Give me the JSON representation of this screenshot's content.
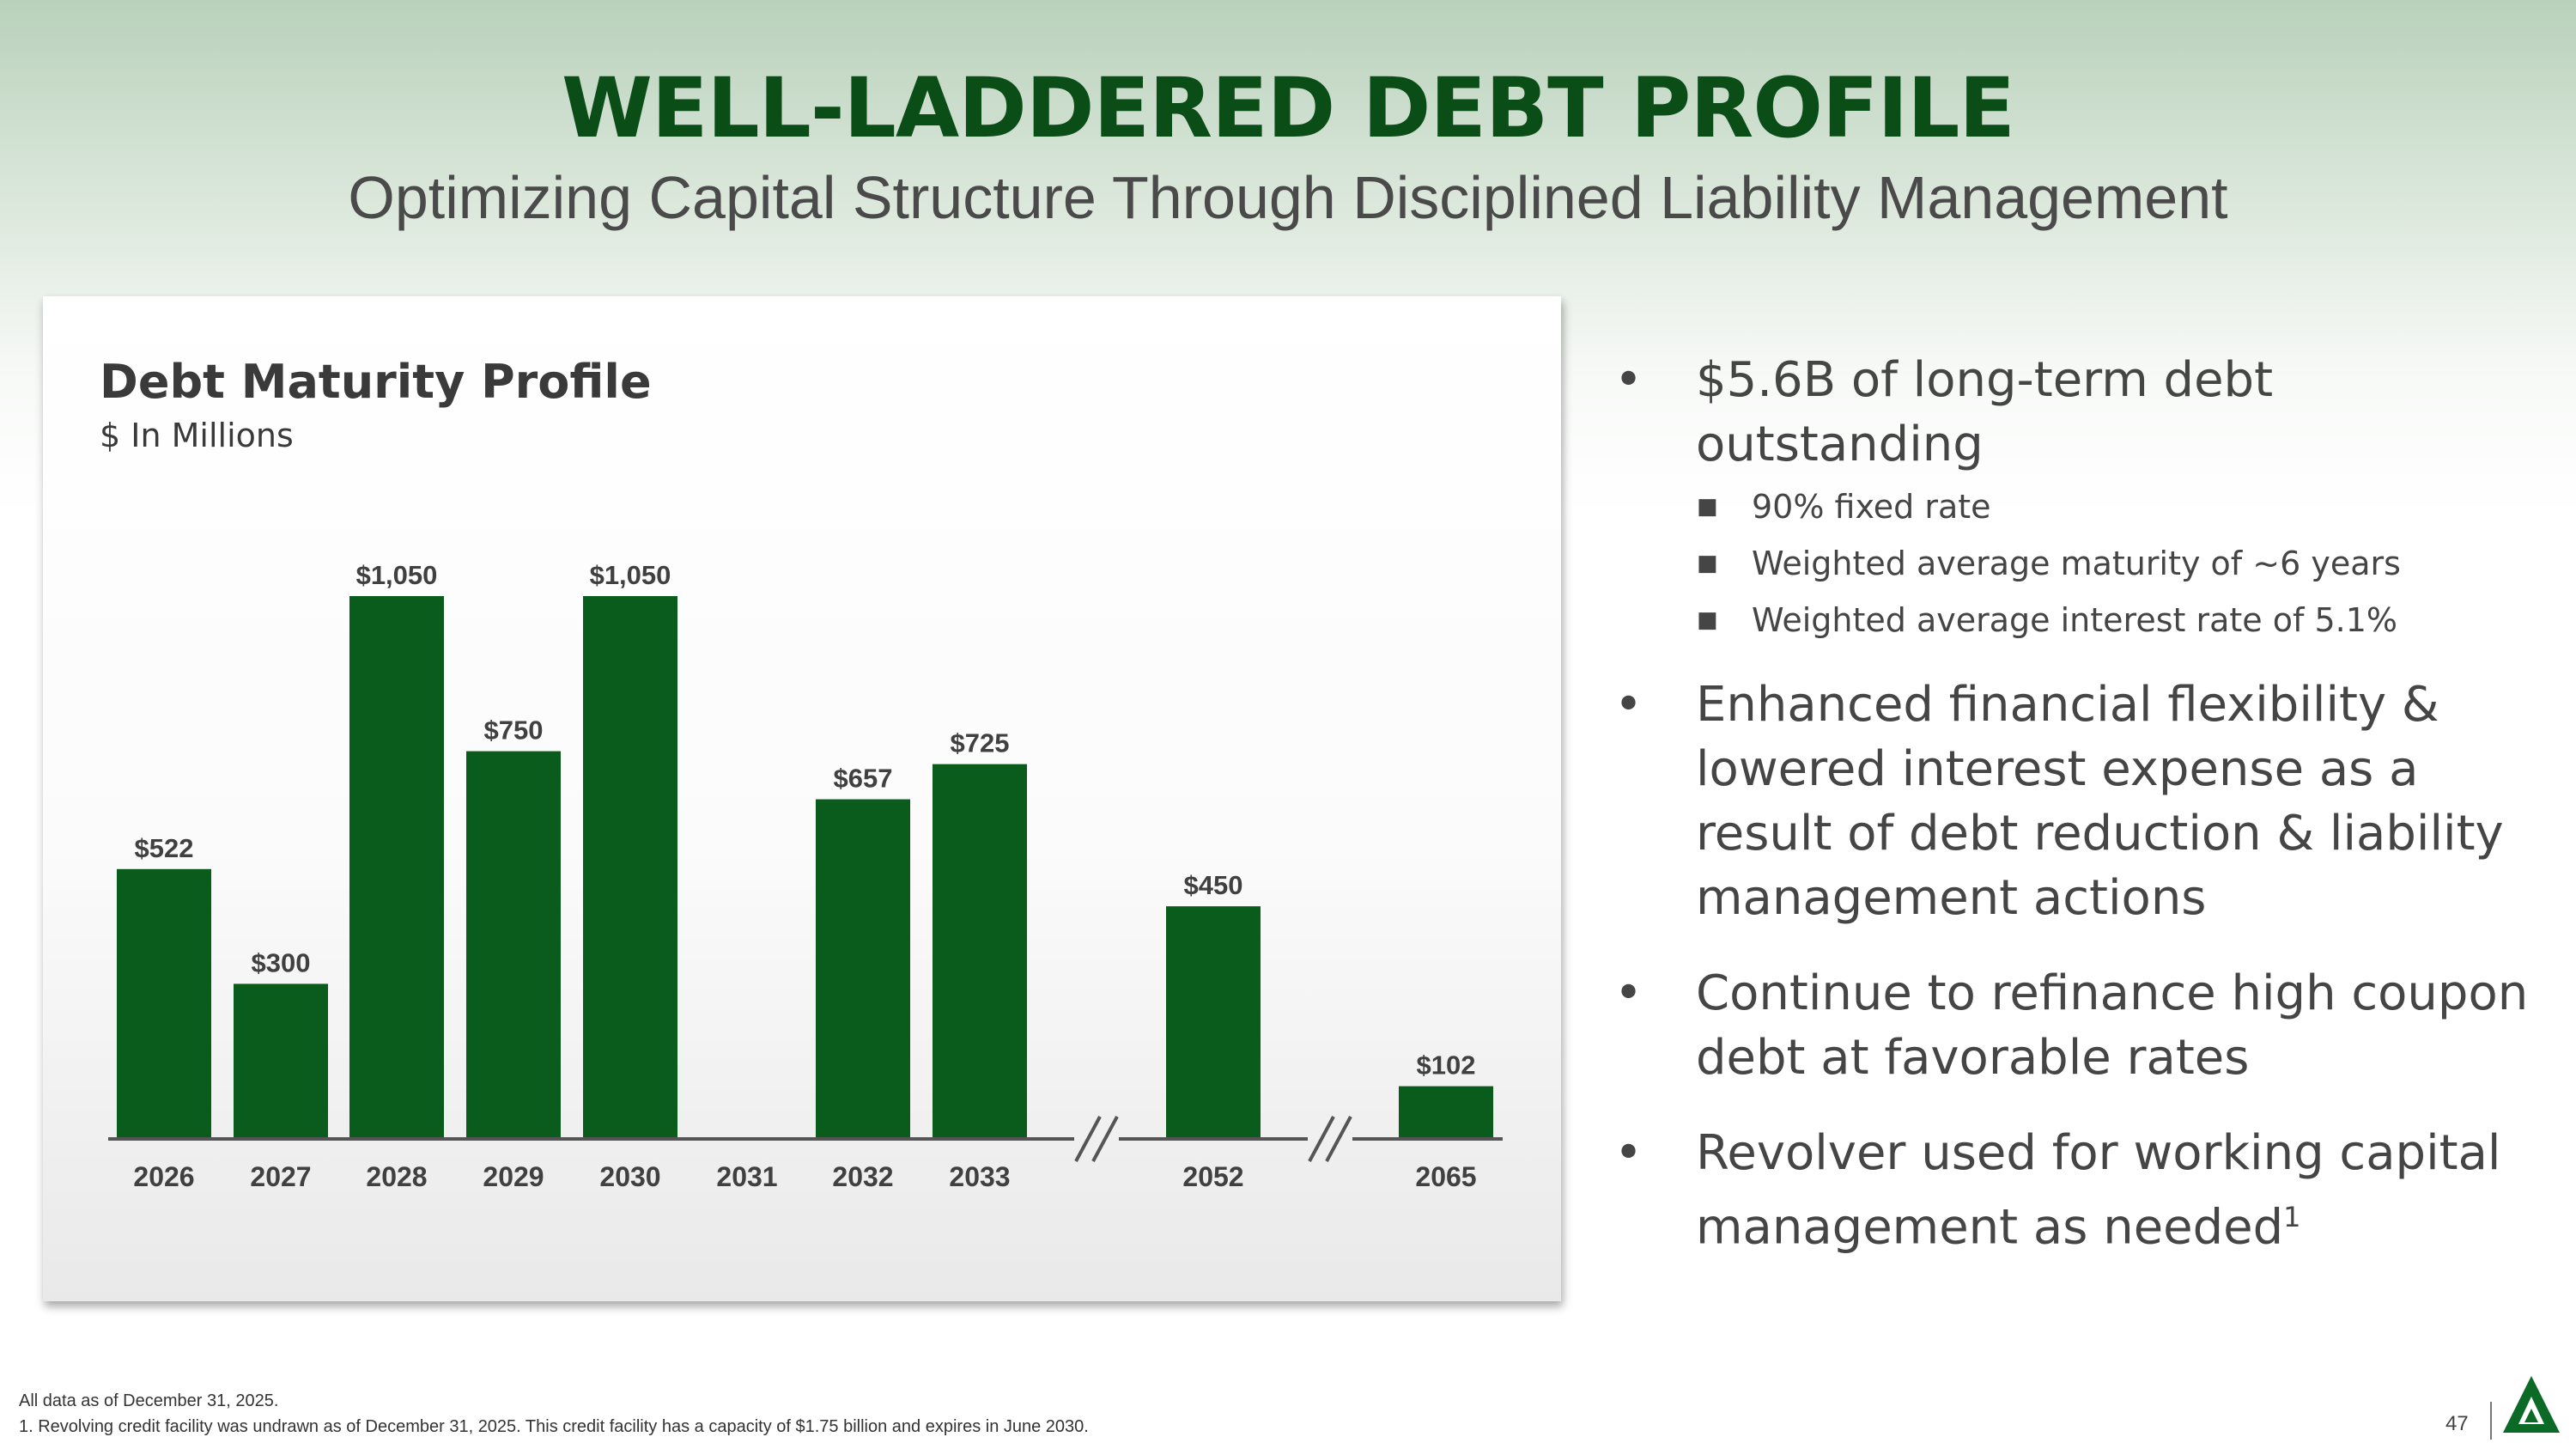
{
  "header": {
    "title": "WELL-LADDERED DEBT PROFILE",
    "subtitle": "Optimizing Capital Structure Through Disciplined Liability Management"
  },
  "chart_data": {
    "type": "bar",
    "title": "Debt Maturity Profile",
    "subtitle": "$ In Millions",
    "categories": [
      "2026",
      "2027",
      "2028",
      "2029",
      "2030",
      "2031",
      "2032",
      "2033",
      "2052",
      "2065"
    ],
    "values": [
      522,
      300,
      1050,
      750,
      1050,
      null,
      657,
      725,
      450,
      102
    ],
    "data_labels": [
      "$522",
      "$300",
      "$1,050",
      "$750",
      "$1,050",
      "",
      "$657",
      "$725",
      "$450",
      "$102"
    ],
    "axis_breaks_after": [
      "2033",
      "2052"
    ],
    "ylim": [
      0,
      1050
    ],
    "grid": false,
    "bar_color": "#0a5c1c"
  },
  "bullets": [
    {
      "text": "$5.6B of long-term debt outstanding",
      "sub": [
        "90% fixed rate",
        "Weighted average maturity of ~6 years",
        "Weighted average interest rate of 5.1%"
      ]
    },
    {
      "text": "Enhanced financial flexibility & lowered interest expense as a result of debt reduction & liability management actions",
      "sub": []
    },
    {
      "text": "Continue to refinance high coupon debt at favorable rates",
      "sub": []
    },
    {
      "text": "Revolver used for working capital management as needed",
      "sup": "1",
      "sub": []
    }
  ],
  "footnotes": {
    "line1": "All data as of December 31, 2025.",
    "line2": "1. Revolving credit facility was undrawn as of December 31, 2025. This credit facility has a capacity of $1.75 billion and expires in June 2030."
  },
  "page_number": "47",
  "colors": {
    "title": "#0b4d16",
    "bar": "#0a5c1c",
    "logo": "#0b6a26"
  }
}
